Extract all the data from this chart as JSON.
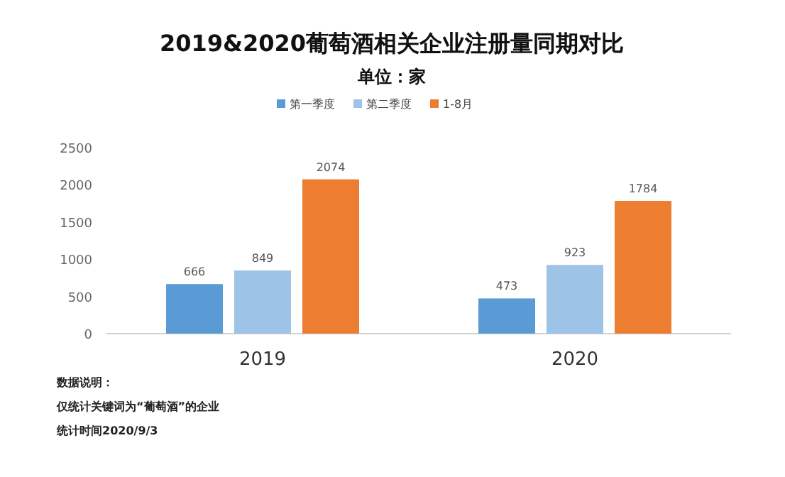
{
  "chart_data": {
    "type": "bar",
    "title": "2019&2020葡萄酒相关企业注册量同期对比",
    "subtitle": "单位：家",
    "categories": [
      "2019",
      "2020"
    ],
    "series": [
      {
        "name": "第一季度",
        "color": "#5b9bd5",
        "values": [
          666,
          473
        ]
      },
      {
        "name": "第二季度",
        "color": "#9dc3e6",
        "values": [
          849,
          923
        ]
      },
      {
        "name": "1-8月",
        "color": "#ed7d31",
        "values": [
          2074,
          1784
        ]
      }
    ],
    "ylim": [
      0,
      2500
    ],
    "yticks": [
      0,
      500,
      1000,
      1500,
      2000,
      2500
    ],
    "data_labels": true,
    "grid": false,
    "legend": "top",
    "annotations": [
      "数据说明：",
      "仅统计关键词为“葡萄酒”的企业",
      "统计时间2020/9/3"
    ]
  }
}
